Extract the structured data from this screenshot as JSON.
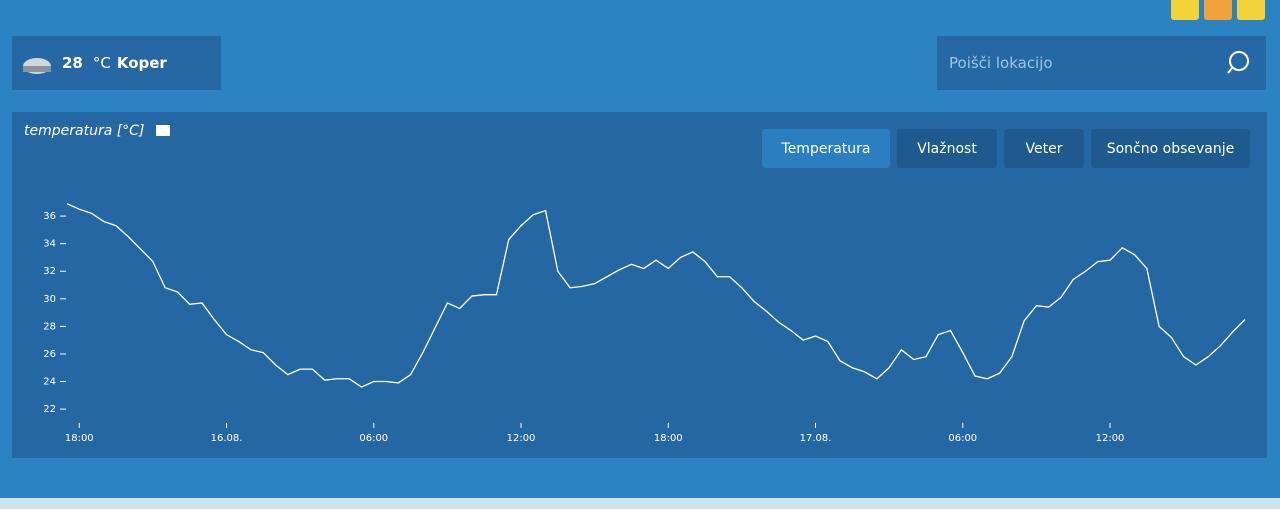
{
  "header": {
    "temperature": "28",
    "unit": "°C",
    "location": "Koper"
  },
  "search": {
    "placeholder": "Poišči lokacijo"
  },
  "tabs": [
    "Temperatura",
    "Vlažnost",
    "Veter",
    "Sončno obsevanje"
  ],
  "chart_data": {
    "type": "line",
    "title": "temperatura [°C]",
    "categories": [
      null,
      "18:00",
      null,
      null,
      null,
      null,
      null,
      null,
      null,
      null,
      null,
      null,
      null,
      "16.08.",
      null,
      null,
      null,
      null,
      null,
      null,
      null,
      null,
      null,
      null,
      null,
      "06:00",
      null,
      null,
      null,
      null,
      null,
      null,
      null,
      null,
      null,
      null,
      null,
      "12:00",
      null,
      null,
      null,
      null,
      null,
      null,
      null,
      null,
      null,
      null,
      null,
      "18:00",
      null,
      null,
      null,
      null,
      null,
      null,
      null,
      null,
      null,
      null,
      null,
      "17.08.",
      null,
      null,
      null,
      null,
      null,
      null,
      null,
      null,
      null,
      null,
      null,
      "06:00",
      null,
      null,
      null,
      null,
      null,
      null,
      null,
      null,
      null,
      null,
      null,
      "12:00",
      null,
      null,
      null,
      null,
      null,
      null,
      null,
      null,
      null,
      null,
      null
    ],
    "series": [
      {
        "name": "temperatura",
        "color": "#ffffff",
        "values": [
          36.9,
          36.5,
          36.2,
          35.6,
          35.3,
          34.5,
          33.6,
          32.7,
          30.8,
          30.5,
          29.6,
          29.7,
          28.5,
          27.4,
          26.9,
          26.3,
          26.1,
          25.2,
          24.5,
          24.9,
          24.9,
          24.1,
          24.2,
          24.2,
          23.6,
          24.0,
          24.0,
          23.9,
          24.5,
          26.1,
          27.9,
          29.7,
          29.3,
          30.2,
          30.3,
          30.3,
          34.3,
          35.3,
          36.1,
          36.4,
          32.0,
          30.8,
          30.9,
          31.1,
          31.6,
          32.1,
          32.5,
          32.2,
          32.8,
          32.2,
          33.0,
          33.4,
          32.7,
          31.6,
          31.6,
          30.8,
          29.8,
          29.1,
          28.3,
          27.7,
          27.0,
          27.3,
          26.9,
          25.5,
          25.0,
          24.7,
          24.2,
          25.0,
          26.3,
          25.6,
          25.8,
          27.4,
          27.7,
          26.1,
          24.4,
          24.2,
          24.6,
          25.8,
          28.4,
          29.5,
          29.4,
          30.1,
          31.4,
          32.0,
          32.7,
          32.8,
          33.7,
          33.2,
          32.2,
          28.0,
          27.2,
          25.8,
          25.2,
          25.8,
          26.6,
          27.6,
          28.5
        ]
      }
    ],
    "ylim": [
      21,
      37.5
    ],
    "yticks": [
      22,
      24,
      26,
      28,
      30,
      32,
      34,
      36
    ]
  }
}
